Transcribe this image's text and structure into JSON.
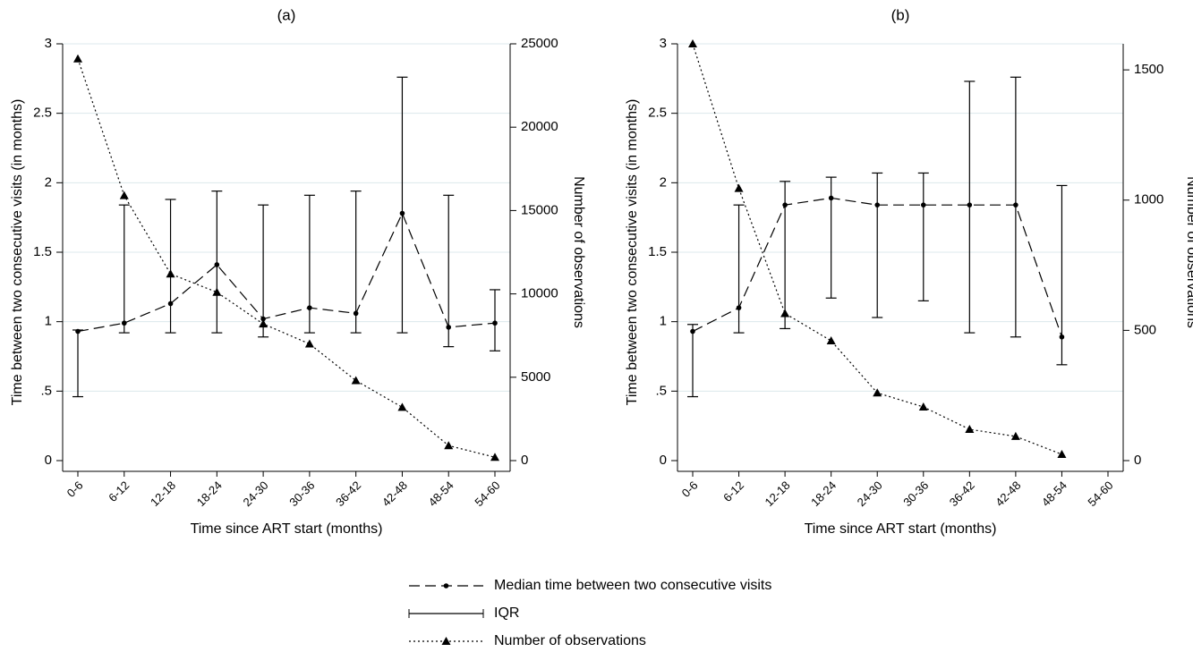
{
  "chart_data": [
    {
      "type": "line",
      "title": "(a)",
      "x_label": "Time since ART start (months)",
      "y_label": "Time between two consecutive visits (in months)",
      "y2_label": "Number of observations",
      "categories": [
        "0-6",
        "6-12",
        "12-18",
        "18-24",
        "24-30",
        "30-36",
        "36-42",
        "42-48",
        "48-54",
        "54-60"
      ],
      "ylim": [
        0,
        3
      ],
      "yticks": [
        0,
        {
          "value": 0.5,
          "label": ".5"
        },
        1,
        1.5,
        2,
        2.5,
        3
      ],
      "y2lim": [
        0,
        25000
      ],
      "y2ticks": [
        0,
        5000,
        10000,
        15000,
        20000,
        25000
      ],
      "grid": true,
      "series": [
        {
          "name": "Median time between two consecutive visits",
          "color": "#000000",
          "style": "dashed",
          "marker": "circle",
          "values": [
            0.93,
            0.99,
            1.13,
            1.41,
            1.02,
            1.1,
            1.06,
            1.78,
            0.96,
            0.99
          ]
        },
        {
          "name": "IQR",
          "type": "errorbar",
          "color": "#000000",
          "low": [
            0.46,
            0.92,
            0.92,
            0.92,
            0.89,
            0.92,
            0.92,
            0.92,
            0.82,
            0.79
          ],
          "high": [
            0.94,
            1.84,
            1.88,
            1.94,
            1.84,
            1.91,
            1.94,
            2.76,
            1.91,
            1.23
          ]
        },
        {
          "name": "Number of observations",
          "color": "#000000",
          "style": "dotted",
          "marker": "triangle",
          "axis": "y2",
          "values": [
            24100,
            15900,
            11200,
            10100,
            8200,
            7000,
            4800,
            3200,
            900,
            200
          ]
        }
      ]
    },
    {
      "type": "line",
      "title": "(b)",
      "x_label": "Time since ART start (months)",
      "y_label": "Time between two consecutive visits (in months)",
      "y2_label": "Number of observations",
      "categories": [
        "0-6",
        "6-12",
        "12-18",
        "18-24",
        "24-30",
        "30-36",
        "36-42",
        "42-48",
        "48-54",
        "54-60"
      ],
      "ylim": [
        0,
        3
      ],
      "yticks": [
        0,
        {
          "value": 0.5,
          "label": ".5"
        },
        1,
        1.5,
        2,
        2.5,
        3
      ],
      "y2lim": [
        0,
        1600
      ],
      "y2ticks": [
        0,
        500,
        1000,
        1500
      ],
      "grid": true,
      "series": [
        {
          "color": "#000000",
          "style": "dashed",
          "marker": "circle",
          "values": [
            0.93,
            1.1,
            1.84,
            1.89,
            1.84,
            1.84,
            1.84,
            1.84,
            0.89,
            null
          ]
        },
        {
          "type": "errorbar",
          "color": "#000000",
          "low": [
            0.46,
            0.92,
            0.95,
            1.17,
            1.03,
            1.15,
            0.92,
            0.89,
            0.69,
            null
          ],
          "high": [
            0.98,
            1.84,
            2.01,
            2.04,
            2.07,
            2.07,
            2.73,
            2.76,
            1.98,
            null
          ]
        },
        {
          "color": "#000000",
          "style": "dotted",
          "marker": "triangle",
          "axis": "y2",
          "values": [
            1600,
            1045,
            565,
            460,
            260,
            206,
            120,
            93,
            24,
            null
          ]
        }
      ]
    }
  ]
}
